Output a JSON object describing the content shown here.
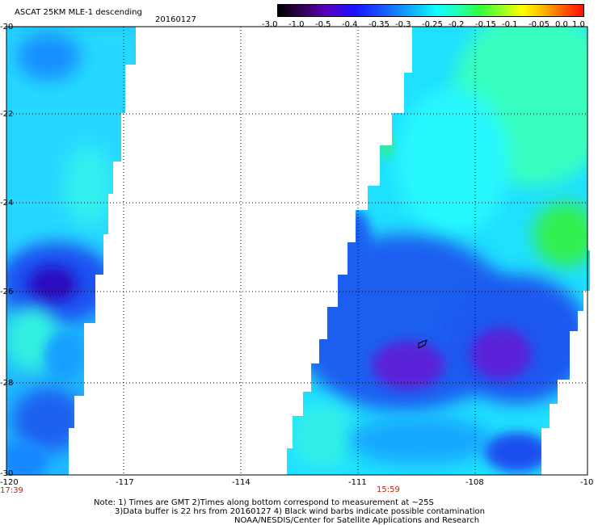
{
  "header": {
    "title": "ASCAT 25KM MLE-1 descending",
    "date": "20160127"
  },
  "colorbar": {
    "labels": [
      "-3.0",
      "-1.0",
      "-0.5",
      "-0.4",
      "-0.35",
      "-0.3",
      "-0.25",
      "-0.2",
      "-0.15",
      "-0.1",
      "-0.05",
      "0.0",
      "1.0"
    ]
  },
  "axes": {
    "y_ticks": [
      "-20",
      "-22",
      "-24",
      "-26",
      "-28",
      "-30"
    ],
    "x_ticks": [
      "-120",
      "-117",
      "-114",
      "-111",
      "-108",
      "-10"
    ]
  },
  "times": {
    "left": "17:39",
    "center": "15:59"
  },
  "footer": {
    "line1": "Note: 1) Times are GMT 2)Times along bottom correspond to measurement at ~25S",
    "line2": "3)Data buffer is 22 hrs from 20160127 4) Black wind barbs indicate possible contamination",
    "line3": "NOAA/NESDIS/Center for Satellite Applications and Research"
  },
  "colors": {
    "deep_blue": "#1d5cf0",
    "purple_core": "#6a18c8",
    "cyan": "#18f0f0",
    "light_cyan": "#40ffd8",
    "green": "#30f060",
    "time_label": "#cc2200"
  }
}
